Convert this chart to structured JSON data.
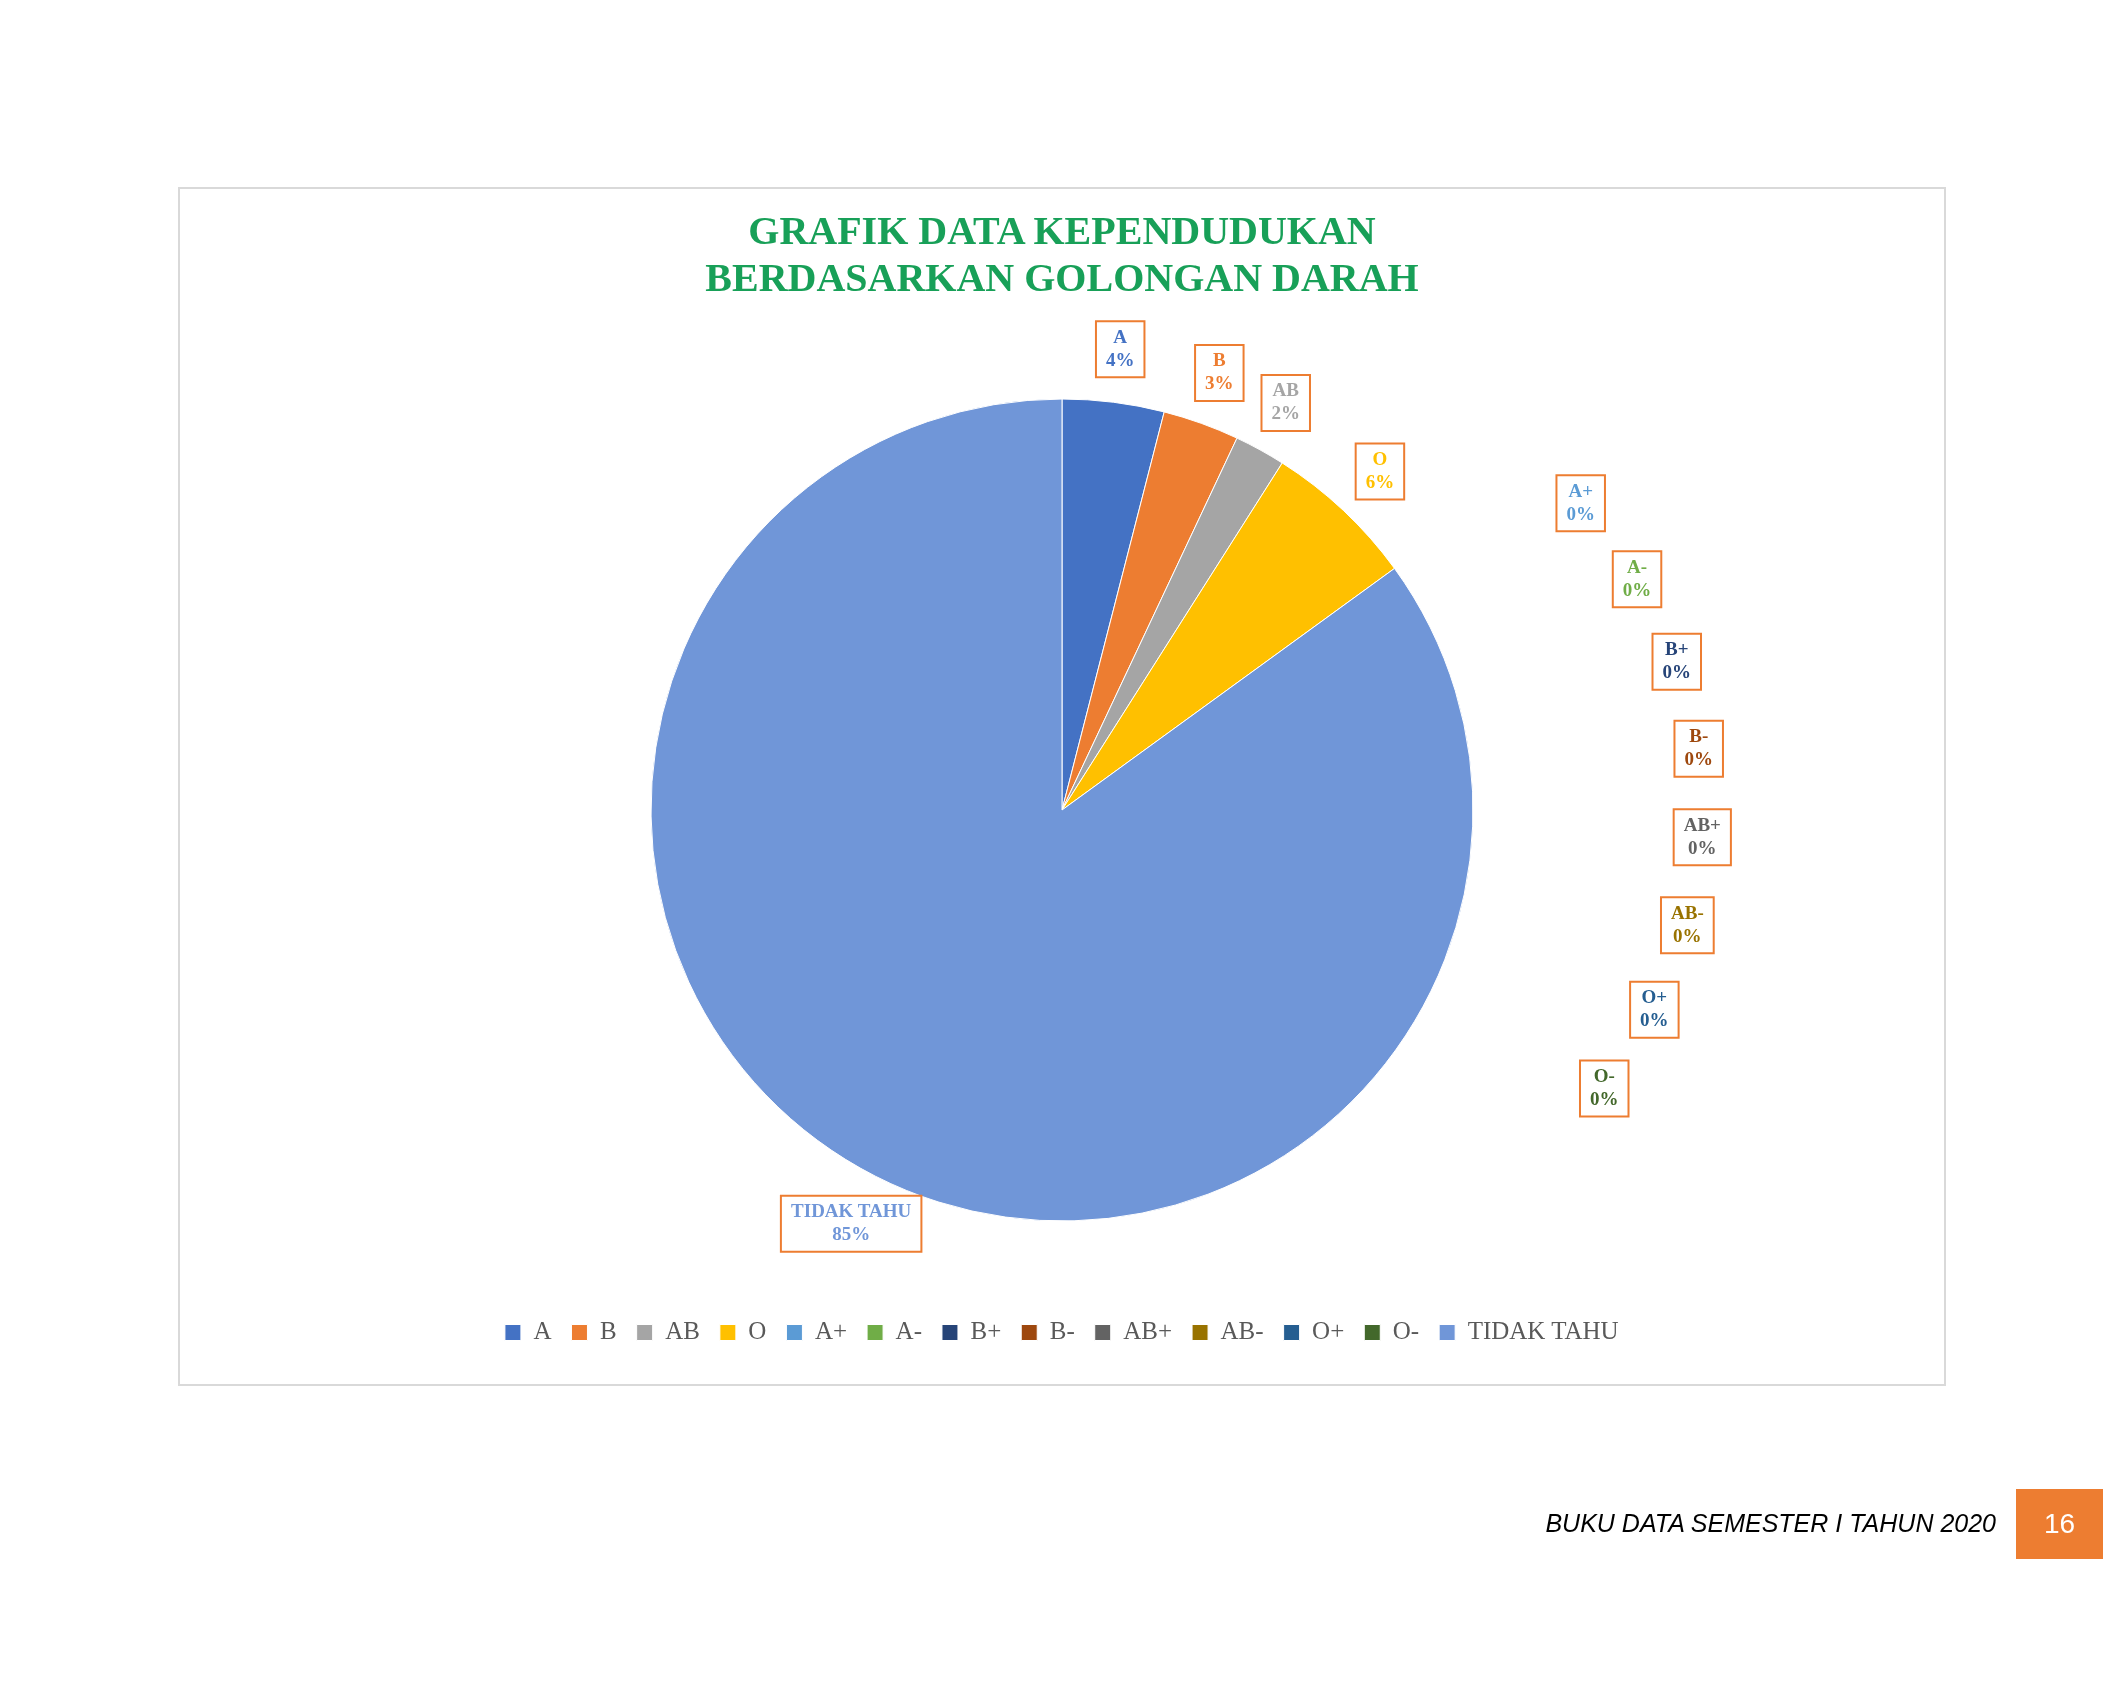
{
  "chart_data": {
    "type": "pie",
    "title": "GRAFIK DATA KEPENDUDUKAN BERDASARKAN GOLONGAN DARAH",
    "categories": [
      "A",
      "B",
      "AB",
      "O",
      "A+",
      "A-",
      "B+",
      "B-",
      "AB+",
      "AB-",
      "O+",
      "O-",
      "TIDAK TAHU"
    ],
    "values": [
      4,
      3,
      2,
      6,
      0,
      0,
      0,
      0,
      0,
      0,
      0,
      0,
      85
    ],
    "value_labels": [
      "4%",
      "3%",
      "2%",
      "6%",
      "0%",
      "0%",
      "0%",
      "0%",
      "0%",
      "0%",
      "0%",
      "0%",
      "85%"
    ],
    "colors": [
      "#4472c4",
      "#ed7d31",
      "#a5a5a5",
      "#ffc000",
      "#5b9bd5",
      "#70ad47",
      "#264478",
      "#9e480e",
      "#636363",
      "#997300",
      "#255e91",
      "#43682b",
      "#7096d8"
    ],
    "legend": "bottom",
    "annotations": [
      "BUKU DATA SEMESTER I TAHUN 2020",
      "16"
    ]
  }
}
